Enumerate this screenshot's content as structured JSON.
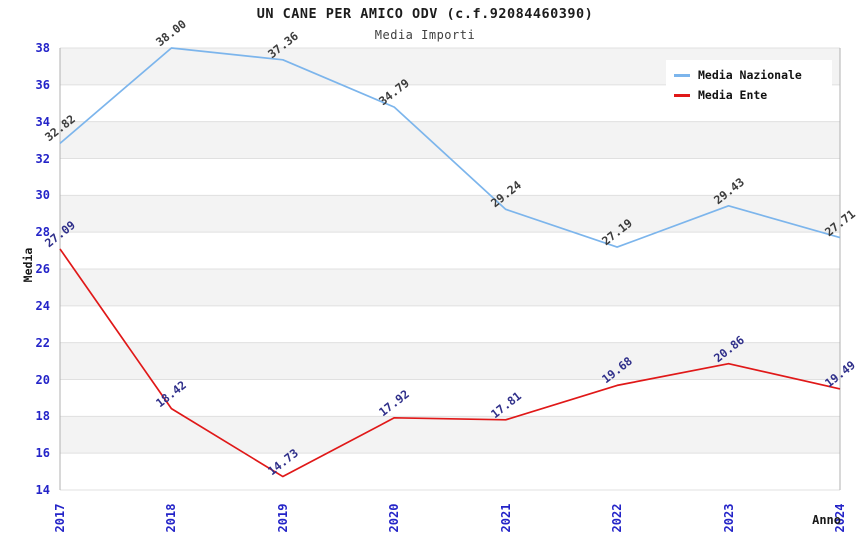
{
  "chart_data": {
    "type": "line",
    "title": "UN CANE PER AMICO ODV (c.f.92084460390)",
    "subtitle": "Media Importi",
    "xlabel": "Anno",
    "ylabel": "Media",
    "categories": [
      "2017",
      "2018",
      "2019",
      "2020",
      "2021",
      "2022",
      "2023",
      "2024"
    ],
    "series": [
      {
        "name": "Media Nazionale",
        "color": "#7cb5ec",
        "label_color": "#3c3c3c",
        "values": [
          32.82,
          38.0,
          37.36,
          34.79,
          29.24,
          27.19,
          29.43,
          27.71
        ]
      },
      {
        "name": "Media Ente",
        "color": "#e01818",
        "label_color": "#2f2f8a",
        "values": [
          27.09,
          18.42,
          14.73,
          17.92,
          17.81,
          19.68,
          20.86,
          19.49
        ]
      }
    ],
    "ylim": [
      14,
      38
    ],
    "ytick_step": 2,
    "grid": "horizontal-bands",
    "legend_position": "top-right",
    "tick_label_color": "#2424c8",
    "band_color": "#f3f3f3",
    "gridline_color": "#e0e0e0",
    "border_color": "#b0b0b0"
  }
}
